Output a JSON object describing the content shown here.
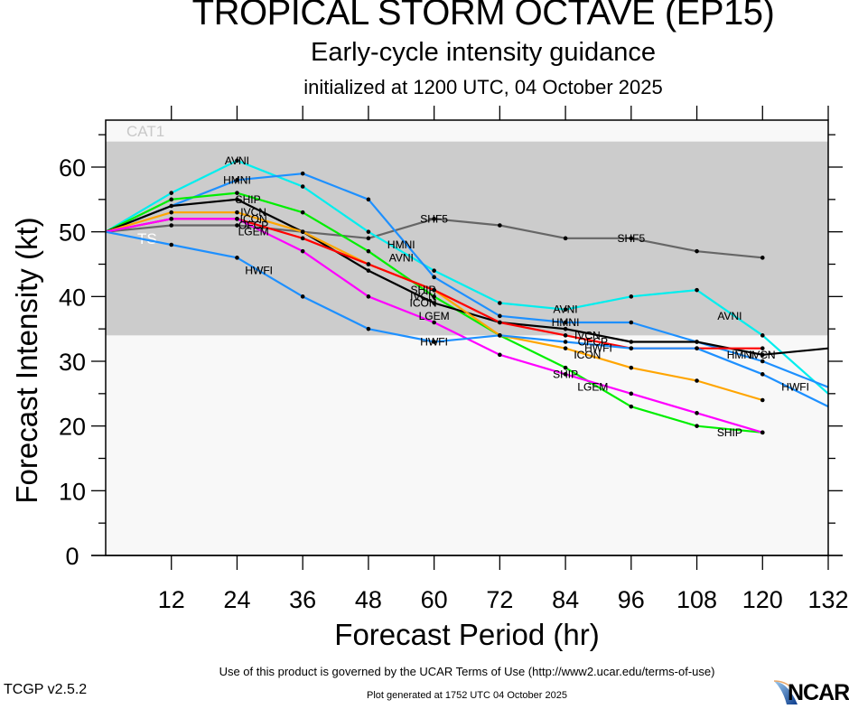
{
  "header": {
    "title": "TROPICAL STORM OCTAVE (EP15)",
    "subtitle": "Early-cycle intensity guidance",
    "init": "initialized at 1200 UTC, 04 October 2025"
  },
  "footer": {
    "terms": "Use of this product is governed by the UCAR Terms of Use (http://www2.ucar.edu/terms-of-use)",
    "version": "TCGP v2.5.2",
    "generated": "Plot generated at 1752 UTC   04 October 2025",
    "logo": "NCAR"
  },
  "chart_data": {
    "type": "line",
    "title": "TROPICAL STORM OCTAVE (EP15)",
    "xlabel": "Forecast Period (hr)",
    "ylabel": "Forecast Intensity (kt)",
    "xlim": [
      0,
      132
    ],
    "ylim": [
      0,
      66
    ],
    "xticks": [
      12,
      24,
      36,
      48,
      60,
      72,
      84,
      96,
      108,
      120,
      132
    ],
    "yticks": [
      0,
      10,
      20,
      30,
      40,
      50,
      60
    ],
    "bands": [
      {
        "name": "TS",
        "from": 34,
        "to": 64,
        "color": "#cccccc"
      },
      {
        "name": "CAT1",
        "from": 64,
        "to": 66,
        "color": "#f8f8f8"
      }
    ],
    "series": [
      {
        "name": "SHF5",
        "color": "#666666",
        "x": [
          0,
          12,
          24,
          36,
          48,
          60,
          72,
          84,
          96,
          108,
          120
        ],
        "values": [
          50,
          51,
          51,
          50,
          49,
          52,
          51,
          49,
          49,
          47,
          46
        ],
        "labels": [
          {
            "x": 60,
            "y": 52
          },
          {
            "x": 96,
            "y": 49
          }
        ]
      },
      {
        "name": "AVNI",
        "color": "#00eeee",
        "x": [
          0,
          12,
          24,
          36,
          48,
          60,
          72,
          84,
          96,
          108,
          120,
          132
        ],
        "values": [
          50,
          56,
          61,
          57,
          50,
          44,
          39,
          38,
          40,
          41,
          34,
          25
        ],
        "labels": [
          {
            "x": 24,
            "y": 61
          },
          {
            "x": 54,
            "y": 46
          },
          {
            "x": 84,
            "y": 38
          },
          {
            "x": 114,
            "y": 37
          }
        ]
      },
      {
        "name": "HMNI",
        "color": "#1e90ff",
        "x": [
          0,
          24,
          36,
          48,
          60,
          72,
          84,
          96,
          108,
          120,
          132
        ],
        "values": [
          50,
          58,
          59,
          55,
          43,
          37,
          36,
          36,
          33,
          30,
          26
        ],
        "labels": [
          {
            "x": 24,
            "y": 58
          },
          {
            "x": 54,
            "y": 48
          },
          {
            "x": 84,
            "y": 36
          },
          {
            "x": 116,
            "y": 31
          }
        ]
      },
      {
        "name": "SHIP",
        "color": "#00ee00",
        "x": [
          0,
          12,
          24,
          36,
          48,
          60,
          72,
          84,
          96,
          108,
          120
        ],
        "values": [
          50,
          55,
          56,
          53,
          47,
          40,
          34,
          29,
          23,
          20,
          19
        ],
        "labels": [
          {
            "x": 26,
            "y": 55
          },
          {
            "x": 58,
            "y": 41
          },
          {
            "x": 84,
            "y": 28
          },
          {
            "x": 114,
            "y": 19
          }
        ]
      },
      {
        "name": "IVCN",
        "color": "#000000",
        "x": [
          0,
          12,
          24,
          36,
          48,
          60,
          72,
          84,
          96,
          108,
          120,
          132
        ],
        "values": [
          50,
          54,
          55,
          50,
          44,
          39,
          36,
          35,
          33,
          33,
          31,
          32
        ],
        "labels": [
          {
            "x": 27,
            "y": 53
          },
          {
            "x": 58,
            "y": 40
          },
          {
            "x": 88,
            "y": 34
          },
          {
            "x": 120,
            "y": 31
          }
        ]
      },
      {
        "name": "ICON",
        "color": "#ffa500",
        "x": [
          0,
          12,
          24,
          36,
          48,
          60,
          72,
          84,
          96,
          108,
          120
        ],
        "values": [
          50,
          53,
          53,
          50,
          45,
          41,
          34,
          32,
          29,
          27,
          24
        ],
        "labels": [
          {
            "x": 27,
            "y": 52
          },
          {
            "x": 58,
            "y": 39
          },
          {
            "x": 88,
            "y": 31
          }
        ]
      },
      {
        "name": "OFCP",
        "color": "#ff0000",
        "x": [
          0,
          12,
          24,
          36,
          48,
          60,
          72,
          84,
          96,
          108,
          120
        ],
        "values": [
          50,
          52,
          52,
          49,
          45,
          41,
          36,
          34,
          32,
          32,
          32
        ],
        "labels": [
          {
            "x": 27,
            "y": 51
          },
          {
            "x": 89,
            "y": 33
          }
        ]
      },
      {
        "name": "LGEM",
        "color": "#ff00ff",
        "x": [
          0,
          12,
          24,
          36,
          48,
          60,
          72,
          84,
          96,
          108,
          120
        ],
        "values": [
          50,
          52,
          52,
          47,
          40,
          36,
          31,
          28,
          25,
          22,
          19
        ],
        "labels": [
          {
            "x": 27,
            "y": 50
          },
          {
            "x": 60,
            "y": 37
          },
          {
            "x": 89,
            "y": 26
          }
        ]
      },
      {
        "name": "HWFI",
        "color": "#1e90ff",
        "x": [
          0,
          12,
          24,
          36,
          48,
          60,
          72,
          84,
          96,
          108,
          120,
          132
        ],
        "values": [
          50,
          48,
          46,
          40,
          35,
          33,
          34,
          33,
          32,
          32,
          28,
          23
        ],
        "labels": [
          {
            "x": 28,
            "y": 44
          },
          {
            "x": 60,
            "y": 33
          },
          {
            "x": 90,
            "y": 32
          },
          {
            "x": 126,
            "y": 26
          }
        ]
      }
    ]
  }
}
